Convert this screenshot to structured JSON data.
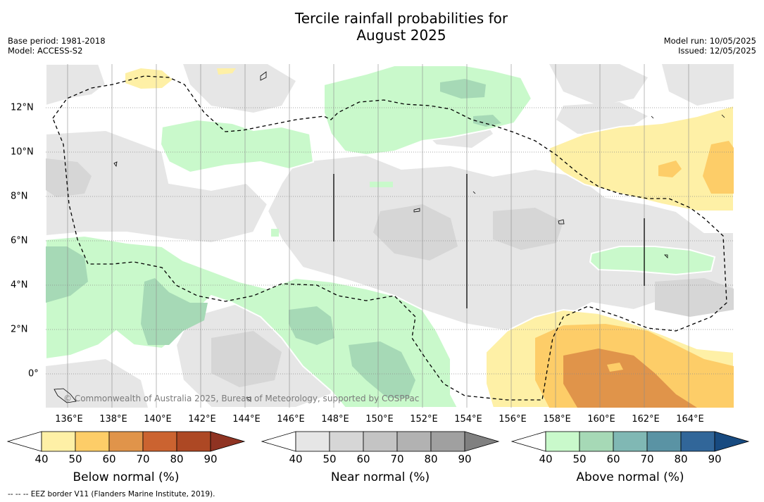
{
  "title_line1": "Tercile rainfall probabilities for",
  "title_line2": "August 2025",
  "base_period": "Base period: 1981-2018",
  "model": "Model: ACCESS-S2",
  "model_run": "Model run: 10/05/2025",
  "issued": "Issued: 12/05/2025",
  "copyright": "© Commonwealth of Australia 2025, Bureau of Meteorology, supported by COSPPac",
  "lon_labels": [
    "136°E",
    "138°E",
    "140°E",
    "142°E",
    "144°E",
    "146°E",
    "148°E",
    "150°E",
    "152°E",
    "154°E",
    "156°E",
    "158°E",
    "160°E",
    "162°E",
    "164°E"
  ],
  "lat_labels": [
    "12°N",
    "10°N",
    "8°N",
    "6°N",
    "4°N",
    "2°N",
    "0°"
  ],
  "colorbars": {
    "below": {
      "title": "Below normal (%)",
      "ticks": [
        "40",
        "50",
        "60",
        "70",
        "80",
        "90"
      ],
      "colors": [
        "#fef0a6",
        "#fdcd68",
        "#e0944a",
        "#cb6330",
        "#ad4824",
        "#8f3322"
      ]
    },
    "near": {
      "title": "Near normal (%)",
      "ticks": [
        "40",
        "50",
        "60",
        "70",
        "80",
        "90"
      ],
      "colors": [
        "#e6e6e6",
        "#d6d6d6",
        "#c4c4c4",
        "#b2b2b2",
        "#a0a0a0",
        "#808080"
      ]
    },
    "above": {
      "title": "Above normal (%)",
      "ticks": [
        "40",
        "50",
        "60",
        "70",
        "80",
        "90"
      ],
      "colors": [
        "#c9f9cb",
        "#a6d9b6",
        "#80b8b4",
        "#5a93a4",
        "#316699",
        "#174a80"
      ]
    }
  },
  "footnote": "--  --  -- EEZ border V11 (Flanders Marine Institute, 2019)."
}
